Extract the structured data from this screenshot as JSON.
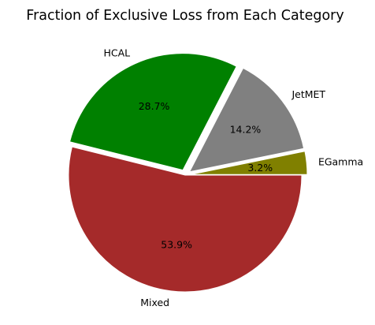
{
  "chart_data": {
    "type": "pie",
    "title": "Fraction of Exclusive Loss from Each Category",
    "start_angle_deg": 0,
    "direction": "counterclockwise",
    "slices": [
      {
        "label": "EGamma",
        "value": 3.2,
        "pct_label": "3.2%",
        "color": "#808000",
        "exploded": true
      },
      {
        "label": "JetMET",
        "value": 14.2,
        "pct_label": "14.2%",
        "color": "#808080",
        "exploded": true
      },
      {
        "label": "HCAL",
        "value": 28.7,
        "pct_label": "28.7%",
        "color": "#008000",
        "exploded": true
      },
      {
        "label": "Mixed",
        "value": 53.9,
        "pct_label": "53.9%",
        "color": "#a52a2a",
        "exploded": false
      }
    ]
  }
}
